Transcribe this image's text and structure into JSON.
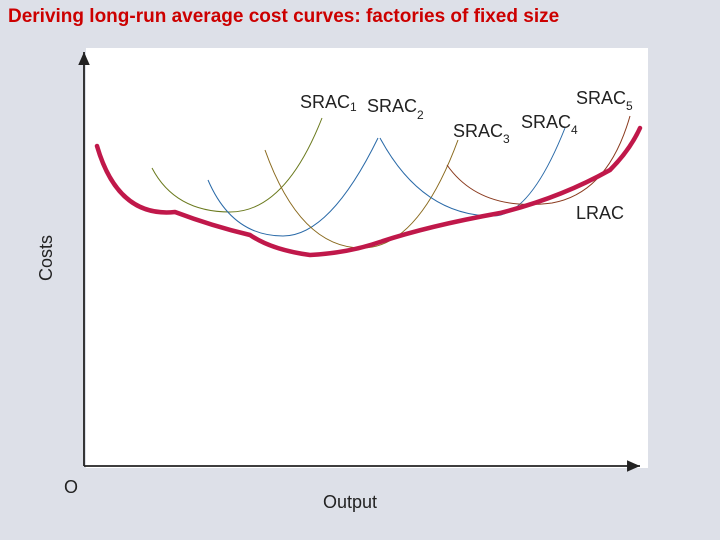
{
  "title": "Deriving long-run average cost curves: factories of fixed size",
  "axes": {
    "y_label": "Costs",
    "x_label": "Output",
    "origin_label": "O"
  },
  "curves": {
    "srac_base": "SRAC",
    "srac1_sub": "1",
    "srac2_sub": "2",
    "srac3_sub": "3",
    "srac4_sub": "4",
    "srac5_sub": "5",
    "lrac_label": "LRAC"
  },
  "colors": {
    "title": "#cc0000",
    "lrac": "#c0184a",
    "srac1": "#6b7a1e",
    "srac2": "#2a6aa8",
    "srac3": "#8a6a1e",
    "srac4": "#2a6aa8",
    "srac5": "#8a3a1e",
    "background": "#dde0e8"
  }
}
